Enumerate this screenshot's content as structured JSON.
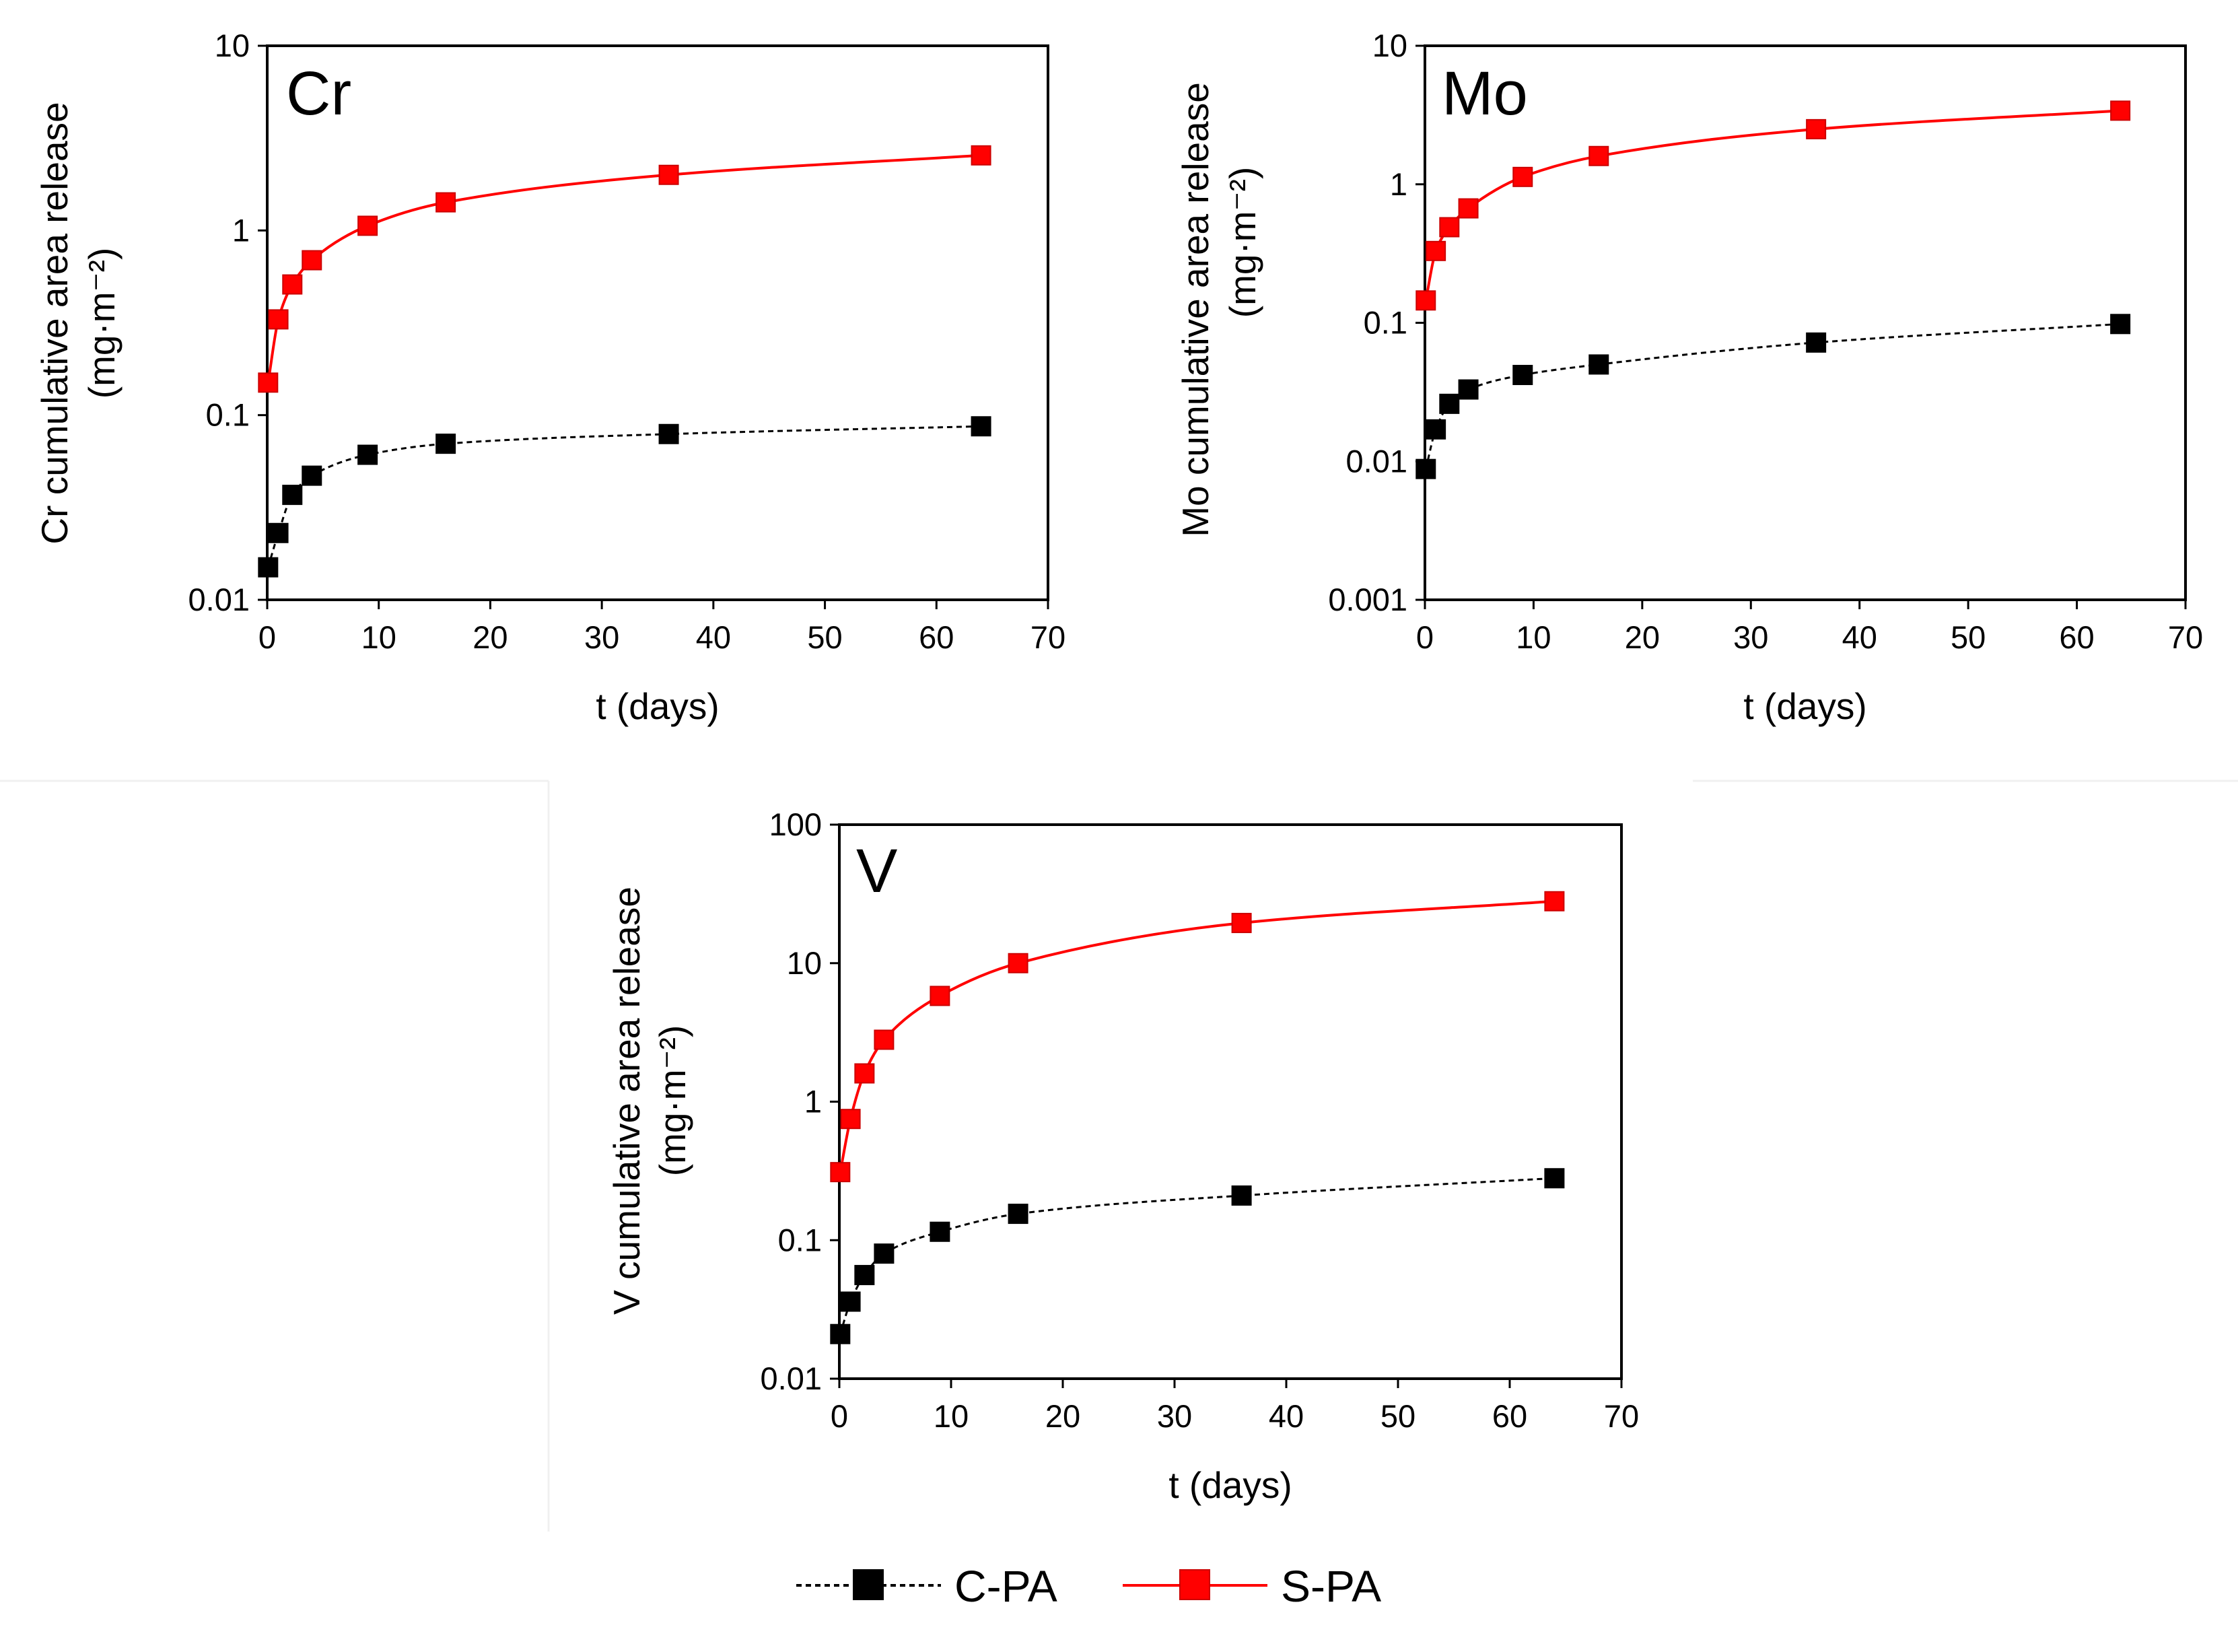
{
  "chart_data": [
    {
      "type": "line",
      "panel_label": "Cr",
      "xlabel": "t (days)",
      "ylabel_line1": "Cr cumulative area release",
      "ylabel_line2": "(mg·m⁻²)",
      "xlim": [
        0,
        70
      ],
      "ylim": [
        0.01,
        10
      ],
      "yscale": "log",
      "xticks": [
        0,
        10,
        20,
        30,
        40,
        50,
        60,
        70
      ],
      "yticks": [
        0.01,
        0.1,
        1,
        10
      ],
      "ytick_labels": [
        "0.01",
        "0.1",
        "1",
        "10"
      ],
      "x": [
        0.08,
        1,
        2.25,
        4,
        9,
        16,
        36,
        64
      ],
      "series": [
        {
          "name": "C-PA",
          "color": "#000000",
          "line": "dashed",
          "values": [
            0.015,
            0.023,
            0.037,
            0.047,
            0.061,
            0.07,
            0.079,
            0.087
          ]
        },
        {
          "name": "S-PA",
          "color": "#ff0000",
          "line": "solid",
          "values": [
            0.15,
            0.33,
            0.51,
            0.69,
            1.06,
            1.42,
            2.0,
            2.55
          ]
        }
      ]
    },
    {
      "type": "line",
      "panel_label": "Mo",
      "xlabel": "t (days)",
      "ylabel_line1": "Mo cumulative area release",
      "ylabel_line2": "(mg·m⁻²)",
      "xlim": [
        0,
        70
      ],
      "ylim": [
        0.001,
        10
      ],
      "yscale": "log",
      "xticks": [
        0,
        10,
        20,
        30,
        40,
        50,
        60,
        70
      ],
      "yticks": [
        0.001,
        0.01,
        0.1,
        1,
        10
      ],
      "ytick_labels": [
        "0.001",
        "0.01",
        "0.1",
        "1",
        "10"
      ],
      "x": [
        0.08,
        1,
        2.25,
        4,
        9,
        16,
        36,
        64
      ],
      "series": [
        {
          "name": "C-PA",
          "color": "#000000",
          "line": "dashed",
          "values": [
            0.0088,
            0.017,
            0.026,
            0.033,
            0.042,
            0.05,
            0.072,
            0.098
          ]
        },
        {
          "name": "S-PA",
          "color": "#ff0000",
          "line": "solid",
          "values": [
            0.145,
            0.33,
            0.49,
            0.67,
            1.13,
            1.6,
            2.5,
            3.4
          ]
        }
      ]
    },
    {
      "type": "line",
      "panel_label": "V",
      "xlabel": "t (days)",
      "ylabel_line1": "V cumulative area release",
      "ylabel_line2": "(mg·m⁻²)",
      "xlim": [
        0,
        70
      ],
      "ylim": [
        0.01,
        100
      ],
      "yscale": "log",
      "xticks": [
        0,
        10,
        20,
        30,
        40,
        50,
        60,
        70
      ],
      "yticks": [
        0.01,
        0.1,
        1,
        10,
        100
      ],
      "ytick_labels": [
        "0.01",
        "0.1",
        "1",
        "10",
        "100"
      ],
      "x": [
        0.08,
        1,
        2.25,
        4,
        9,
        16,
        36,
        64
      ],
      "series": [
        {
          "name": "C-PA",
          "color": "#000000",
          "line": "dashed",
          "values": [
            0.021,
            0.036,
            0.056,
            0.08,
            0.115,
            0.155,
            0.21,
            0.28
          ]
        },
        {
          "name": "S-PA",
          "color": "#ff0000",
          "line": "solid",
          "values": [
            0.31,
            0.75,
            1.6,
            2.8,
            5.8,
            10,
            19.5,
            28
          ]
        }
      ]
    }
  ],
  "legend": [
    {
      "name": "C-PA",
      "color": "#000000",
      "line": "dashed"
    },
    {
      "name": "S-PA",
      "color": "#ff0000",
      "line": "solid"
    }
  ]
}
